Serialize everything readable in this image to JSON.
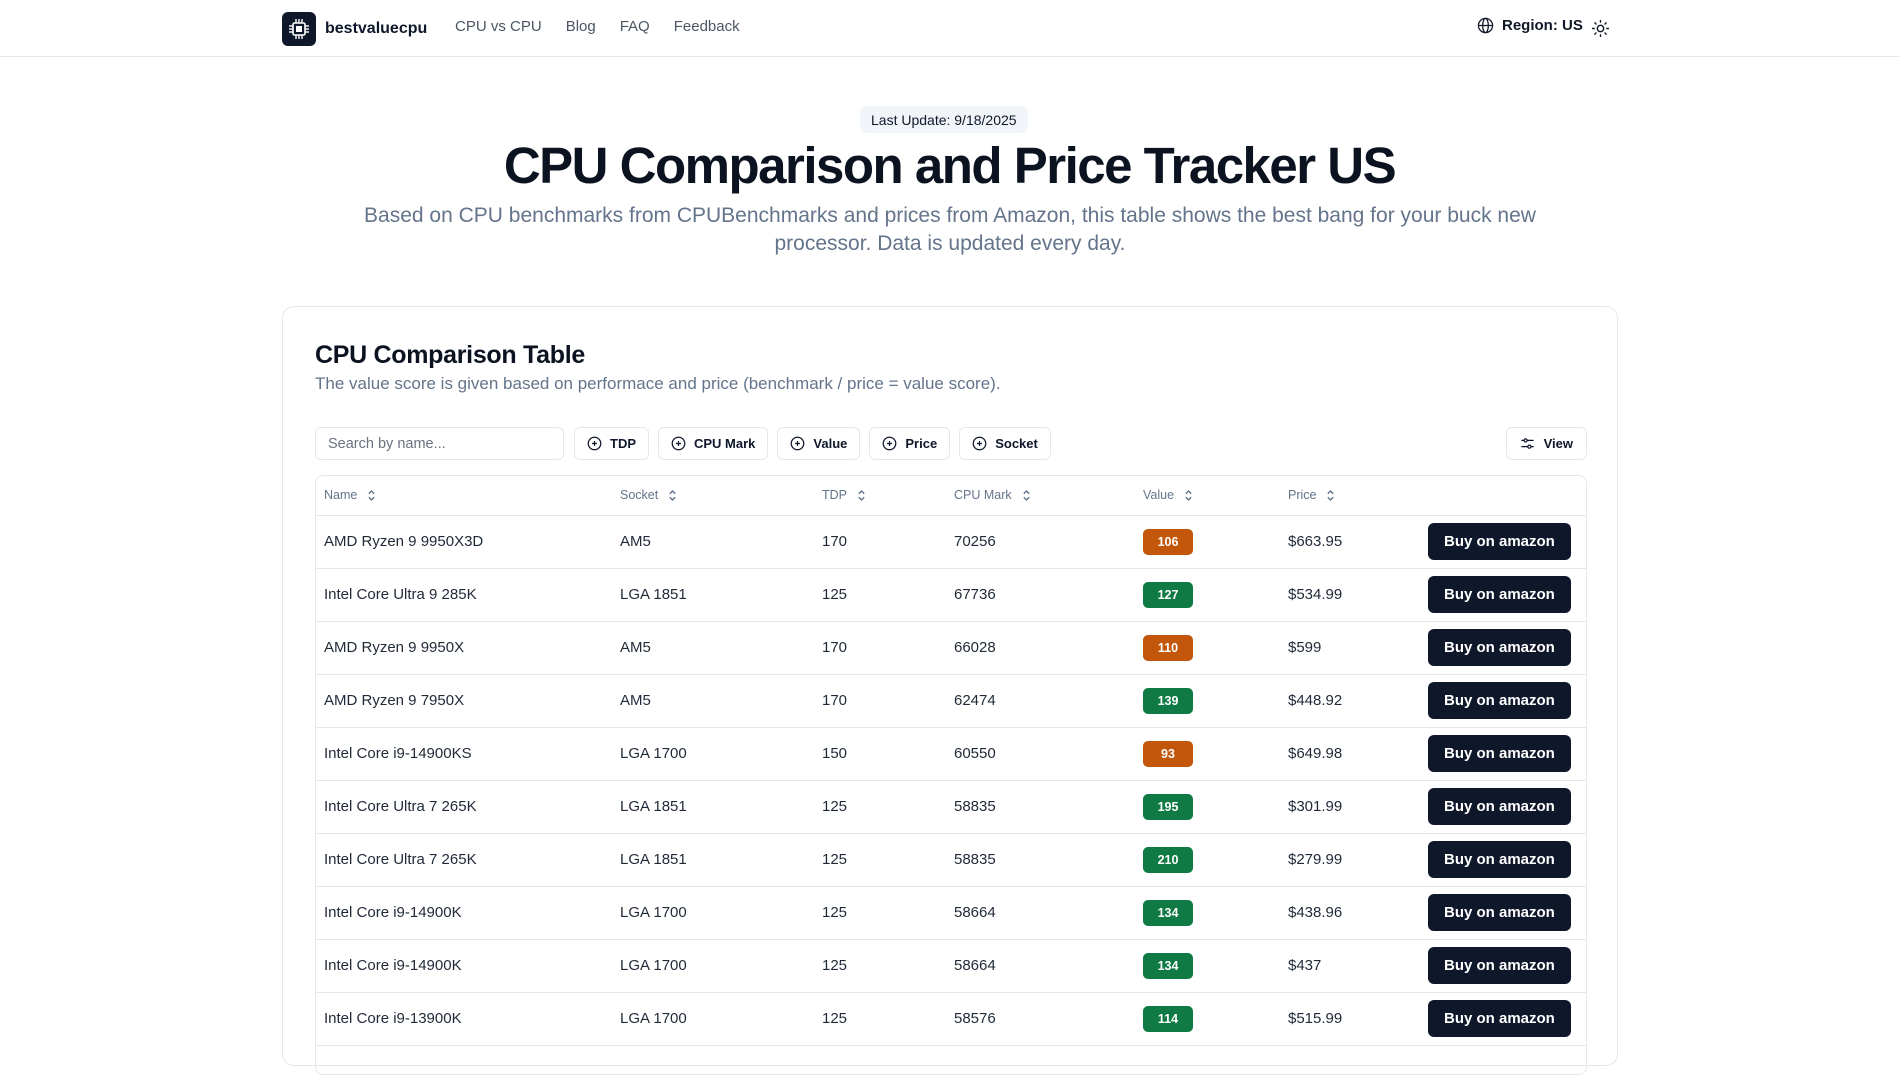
{
  "header": {
    "brand": "bestvaluecpu",
    "nav": [
      "CPU vs CPU",
      "Blog",
      "FAQ",
      "Feedback"
    ],
    "region_label": "Region: US"
  },
  "hero": {
    "badge": "Last Update: 9/18/2025",
    "title": "CPU Comparison and Price Tracker US",
    "subtitle": "Based on CPU benchmarks from CPUBenchmarks and prices from Amazon, this table shows the best bang for your buck new processor. Data is updated every day."
  },
  "card": {
    "title": "CPU Comparison Table",
    "description": "The value score is given based on performace and price (benchmark / price = value score).",
    "search_placeholder": "Search by name...",
    "filters": [
      "TDP",
      "CPU Mark",
      "Value",
      "Price",
      "Socket"
    ],
    "view_label": "View"
  },
  "table": {
    "columns": [
      "Name",
      "Socket",
      "TDP",
      "CPU Mark",
      "Value",
      "Price"
    ],
    "buy_label": "Buy on amazon",
    "colors": {
      "good": "#0f7a43",
      "warn": "#c2570c"
    },
    "rows": [
      {
        "name": "AMD Ryzen 9 9950X3D",
        "socket": "AM5",
        "tdp": "170",
        "mark": "70256",
        "value": "106",
        "status": "warn",
        "price": "$663.95"
      },
      {
        "name": "Intel Core Ultra 9 285K",
        "socket": "LGA 1851",
        "tdp": "125",
        "mark": "67736",
        "value": "127",
        "status": "good",
        "price": "$534.99"
      },
      {
        "name": "AMD Ryzen 9 9950X",
        "socket": "AM5",
        "tdp": "170",
        "mark": "66028",
        "value": "110",
        "status": "warn",
        "price": "$599"
      },
      {
        "name": "AMD Ryzen 9 7950X",
        "socket": "AM5",
        "tdp": "170",
        "mark": "62474",
        "value": "139",
        "status": "good",
        "price": "$448.92"
      },
      {
        "name": "Intel Core i9-14900KS",
        "socket": "LGA 1700",
        "tdp": "150",
        "mark": "60550",
        "value": "93",
        "status": "warn",
        "price": "$649.98"
      },
      {
        "name": "Intel Core Ultra 7 265K",
        "socket": "LGA 1851",
        "tdp": "125",
        "mark": "58835",
        "value": "195",
        "status": "good",
        "price": "$301.99"
      },
      {
        "name": "Intel Core Ultra 7 265K",
        "socket": "LGA 1851",
        "tdp": "125",
        "mark": "58835",
        "value": "210",
        "status": "good",
        "price": "$279.99"
      },
      {
        "name": "Intel Core i9-14900K",
        "socket": "LGA 1700",
        "tdp": "125",
        "mark": "58664",
        "value": "134",
        "status": "good",
        "price": "$438.96"
      },
      {
        "name": "Intel Core i9-14900K",
        "socket": "LGA 1700",
        "tdp": "125",
        "mark": "58664",
        "value": "134",
        "status": "good",
        "price": "$437"
      },
      {
        "name": "Intel Core i9-13900K",
        "socket": "LGA 1700",
        "tdp": "125",
        "mark": "58576",
        "value": "114",
        "status": "good",
        "price": "$515.99"
      }
    ]
  }
}
